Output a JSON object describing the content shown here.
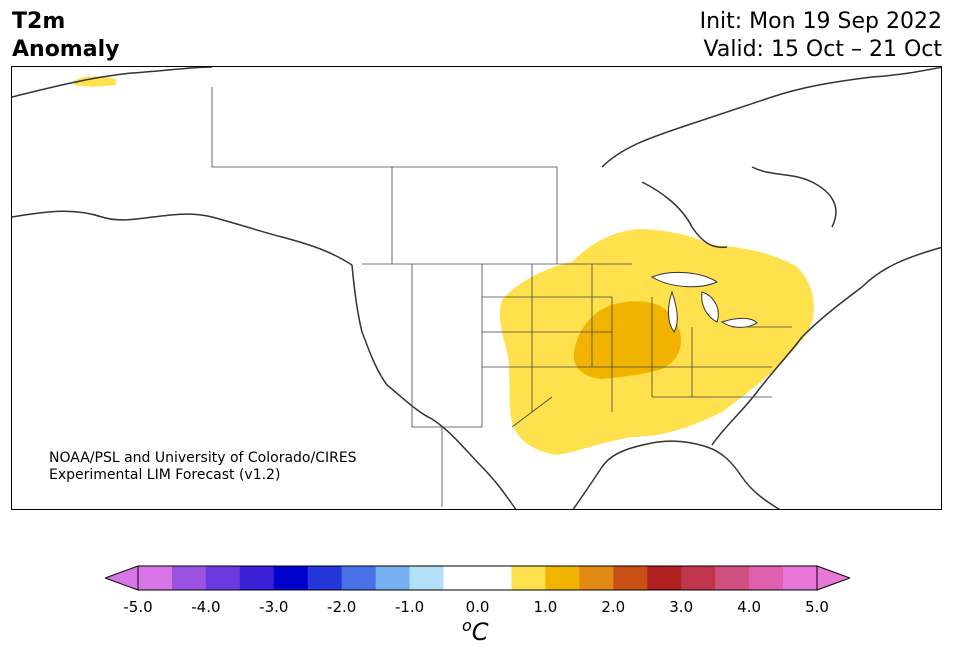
{
  "header": {
    "variable": "T2m",
    "subtitle": "Anomaly",
    "init": "Init: Mon 19 Sep 2022",
    "valid": "Valid: 15 Oct – 21 Oct"
  },
  "credit": {
    "line1": "NOAA/PSL and University of Colorado/CIRES",
    "line2": "Experimental LIM Forecast (v1.2)"
  },
  "colorbar": {
    "unit_main": "C",
    "unit_sup": "o",
    "ticks": [
      "-5.0",
      "-4.0",
      "-3.0",
      "-2.0",
      "-1.0",
      "0.0",
      "1.0",
      "2.0",
      "3.0",
      "4.0",
      "5.0"
    ],
    "colors": [
      "#d876e8",
      "#9b52e0",
      "#6a3ae0",
      "#3a1fd6",
      "#0000cc",
      "#2537d8",
      "#4a72e6",
      "#78b1f2",
      "#b2e0f8",
      "#ffffff",
      "#ffffff",
      "#ffe04d",
      "#f0b400",
      "#e08a14",
      "#c85014",
      "#b02020",
      "#c0364e",
      "#d05080",
      "#e060b0",
      "#e878d8"
    ],
    "under_color": "#d876e8",
    "over_color": "#e878d8"
  },
  "map": {
    "region": "North America",
    "anomaly_levels": [
      {
        "range": "0.5 to 1.0",
        "color": "#ffe04d",
        "area": "Central and eastern United States"
      },
      {
        "range": "1.0 to 1.5",
        "color": "#f0b400",
        "area": "Iowa, Missouri, Illinois"
      }
    ]
  }
}
